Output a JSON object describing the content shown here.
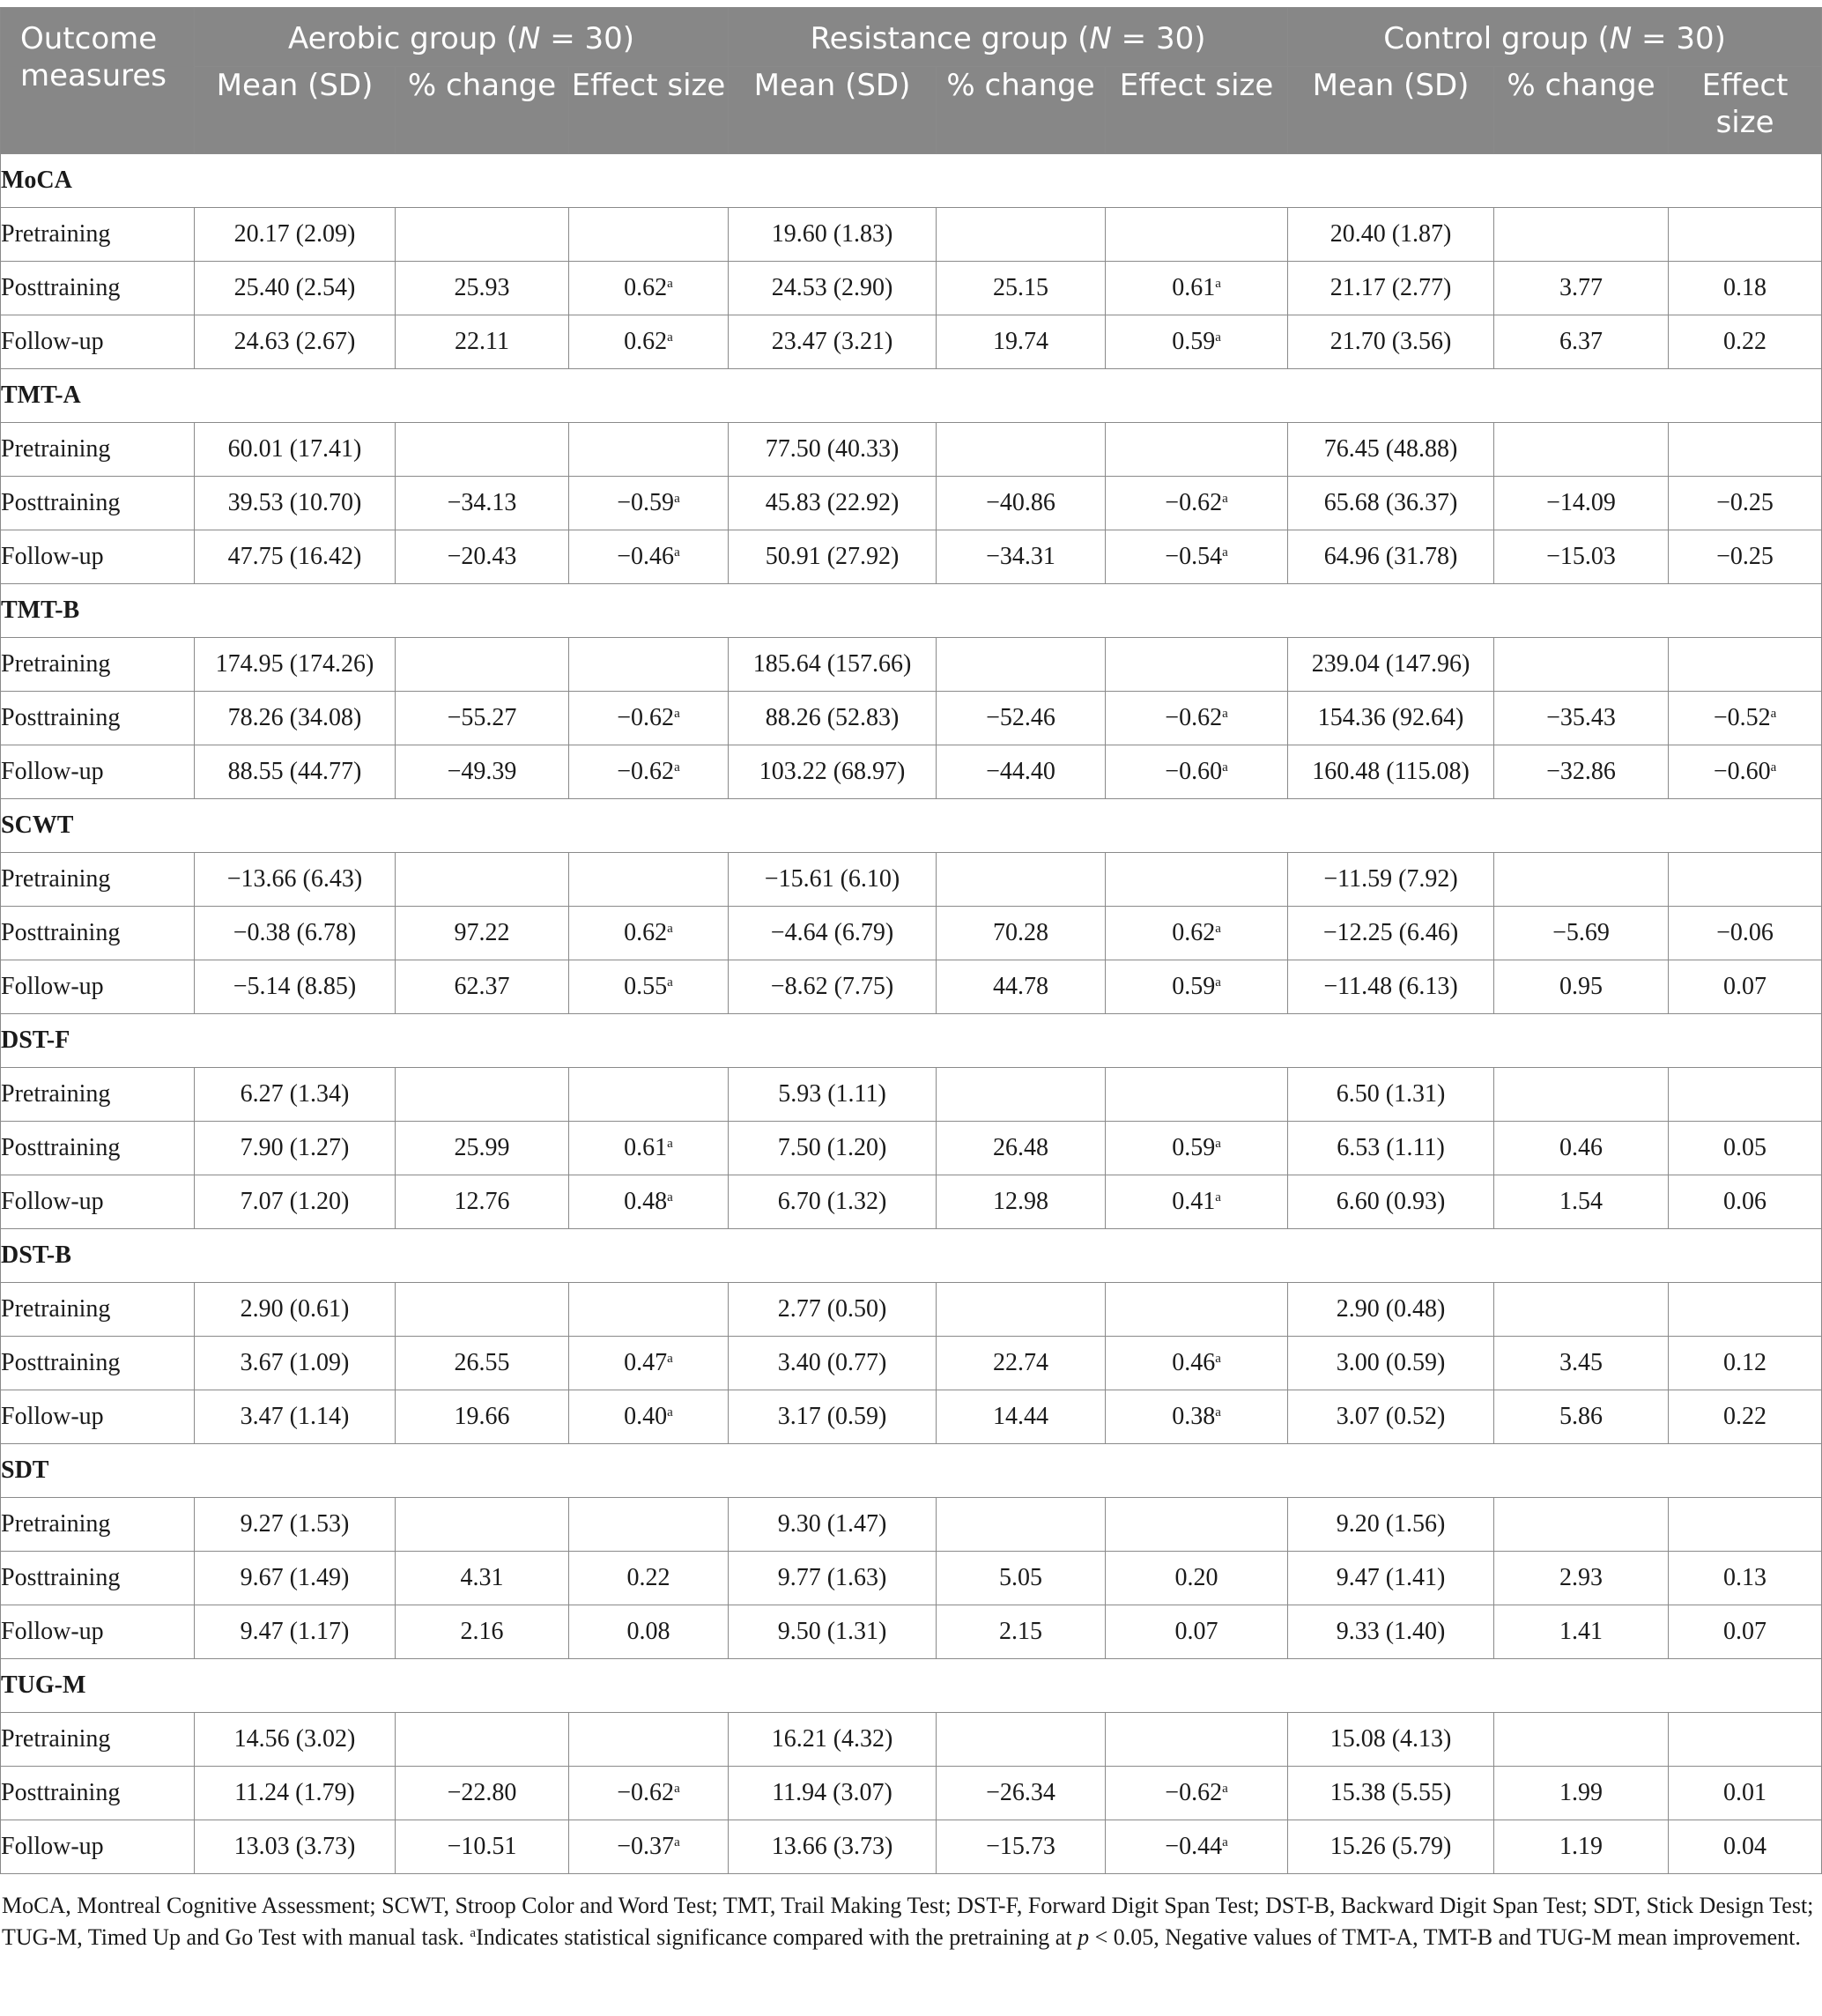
{
  "header": {
    "outcome_label": "Outcome measures",
    "groups": [
      {
        "name": "Aerobic group",
        "n": "N",
        "n_value": " = 30)"
      },
      {
        "name": "Resistance group",
        "n": "N",
        "n_value": " = 30)"
      },
      {
        "name": "Control group",
        "n": "N",
        "n_value": " = 30)"
      }
    ],
    "subcolumns": [
      "Mean (SD)",
      "% change",
      "Effect size"
    ]
  },
  "sections": [
    {
      "title": "MoCA",
      "rows": [
        {
          "label": "Pretraining",
          "cells": [
            [
              "20.17 (2.09)",
              "",
              ""
            ],
            [
              "19.60 (1.83)",
              "",
              ""
            ],
            [
              "20.40 (1.87)",
              "",
              ""
            ]
          ]
        },
        {
          "label": "Posttraining",
          "cells": [
            [
              "25.40 (2.54)",
              "25.93",
              "0.62",
              "a"
            ],
            [
              "24.53 (2.90)",
              "25.15",
              "0.61",
              "a"
            ],
            [
              "21.17 (2.77)",
              "3.77",
              "0.18",
              ""
            ]
          ]
        },
        {
          "label": "Follow-up",
          "cells": [
            [
              "24.63 (2.67)",
              "22.11",
              "0.62",
              "a"
            ],
            [
              "23.47 (3.21)",
              "19.74",
              "0.59",
              "a"
            ],
            [
              "21.70 (3.56)",
              "6.37",
              "0.22",
              ""
            ]
          ]
        }
      ]
    },
    {
      "title": "TMT-A",
      "rows": [
        {
          "label": "Pretraining",
          "cells": [
            [
              "60.01 (17.41)",
              "",
              ""
            ],
            [
              "77.50 (40.33)",
              "",
              ""
            ],
            [
              "76.45 (48.88)",
              "",
              ""
            ]
          ]
        },
        {
          "label": "Posttraining",
          "cells": [
            [
              "39.53 (10.70)",
              "−34.13",
              "−0.59",
              "a"
            ],
            [
              "45.83 (22.92)",
              "−40.86",
              "−0.62",
              "a"
            ],
            [
              "65.68 (36.37)",
              "−14.09",
              "−0.25",
              ""
            ]
          ]
        },
        {
          "label": "Follow-up",
          "cells": [
            [
              "47.75 (16.42)",
              "−20.43",
              "−0.46",
              "a"
            ],
            [
              "50.91 (27.92)",
              "−34.31",
              "−0.54",
              "a"
            ],
            [
              "64.96 (31.78)",
              "−15.03",
              "−0.25",
              ""
            ]
          ]
        }
      ]
    },
    {
      "title": "TMT-B",
      "rows": [
        {
          "label": "Pretraining",
          "cells": [
            [
              "174.95 (174.26)",
              "",
              ""
            ],
            [
              "185.64 (157.66)",
              "",
              ""
            ],
            [
              "239.04 (147.96)",
              "",
              ""
            ]
          ]
        },
        {
          "label": "Posttraining",
          "cells": [
            [
              "78.26 (34.08)",
              "−55.27",
              "−0.62",
              "a"
            ],
            [
              "88.26 (52.83)",
              "−52.46",
              "−0.62",
              "a"
            ],
            [
              "154.36 (92.64)",
              "−35.43",
              "−0.52",
              "a"
            ]
          ]
        },
        {
          "label": "Follow-up",
          "cells": [
            [
              "88.55 (44.77)",
              "−49.39",
              "−0.62",
              "a"
            ],
            [
              "103.22 (68.97)",
              "−44.40",
              "−0.60",
              "a"
            ],
            [
              "160.48 (115.08)",
              "−32.86",
              "−0.60",
              "a"
            ]
          ]
        }
      ]
    },
    {
      "title": "SCWT",
      "rows": [
        {
          "label": "Pretraining",
          "cells": [
            [
              "−13.66 (6.43)",
              "",
              ""
            ],
            [
              "−15.61 (6.10)",
              "",
              ""
            ],
            [
              "−11.59 (7.92)",
              "",
              ""
            ]
          ]
        },
        {
          "label": "Posttraining",
          "cells": [
            [
              "−0.38 (6.78)",
              "97.22",
              "0.62",
              "a"
            ],
            [
              "−4.64 (6.79)",
              "70.28",
              "0.62",
              "a"
            ],
            [
              "−12.25 (6.46)",
              "−5.69",
              "−0.06",
              ""
            ]
          ]
        },
        {
          "label": "Follow-up",
          "cells": [
            [
              "−5.14 (8.85)",
              "62.37",
              "0.55",
              "a"
            ],
            [
              "−8.62 (7.75)",
              "44.78",
              "0.59",
              "a"
            ],
            [
              "−11.48 (6.13)",
              "0.95",
              "0.07",
              ""
            ]
          ]
        }
      ]
    },
    {
      "title": "DST-F",
      "rows": [
        {
          "label": "Pretraining",
          "cells": [
            [
              "6.27 (1.34)",
              "",
              ""
            ],
            [
              "5.93 (1.11)",
              "",
              ""
            ],
            [
              "6.50 (1.31)",
              "",
              ""
            ]
          ]
        },
        {
          "label": "Posttraining",
          "cells": [
            [
              "7.90 (1.27)",
              "25.99",
              "0.61",
              "a"
            ],
            [
              "7.50 (1.20)",
              "26.48",
              "0.59",
              "a"
            ],
            [
              "6.53 (1.11)",
              "0.46",
              "0.05",
              ""
            ]
          ]
        },
        {
          "label": "Follow-up",
          "cells": [
            [
              "7.07 (1.20)",
              "12.76",
              "0.48",
              "a"
            ],
            [
              "6.70 (1.32)",
              "12.98",
              "0.41",
              "a"
            ],
            [
              "6.60 (0.93)",
              "1.54",
              "0.06",
              ""
            ]
          ]
        }
      ]
    },
    {
      "title": "DST-B",
      "rows": [
        {
          "label": "Pretraining",
          "cells": [
            [
              "2.90 (0.61)",
              "",
              ""
            ],
            [
              "2.77 (0.50)",
              "",
              ""
            ],
            [
              "2.90 (0.48)",
              "",
              ""
            ]
          ]
        },
        {
          "label": "Posttraining",
          "cells": [
            [
              "3.67 (1.09)",
              "26.55",
              "0.47",
              "a"
            ],
            [
              "3.40 (0.77)",
              "22.74",
              "0.46",
              "a"
            ],
            [
              "3.00 (0.59)",
              "3.45",
              "0.12",
              ""
            ]
          ]
        },
        {
          "label": "Follow-up",
          "cells": [
            [
              "3.47 (1.14)",
              "19.66",
              "0.40",
              "a"
            ],
            [
              "3.17 (0.59)",
              "14.44",
              "0.38",
              "a"
            ],
            [
              "3.07 (0.52)",
              "5.86",
              "0.22",
              ""
            ]
          ]
        }
      ]
    },
    {
      "title": "SDT",
      "rows": [
        {
          "label": "Pretraining",
          "cells": [
            [
              "9.27 (1.53)",
              "",
              ""
            ],
            [
              "9.30 (1.47)",
              "",
              ""
            ],
            [
              "9.20 (1.56)",
              "",
              ""
            ]
          ]
        },
        {
          "label": "Posttraining",
          "cells": [
            [
              "9.67 (1.49)",
              "4.31",
              "0.22",
              ""
            ],
            [
              "9.77 (1.63)",
              "5.05",
              "0.20",
              ""
            ],
            [
              "9.47 (1.41)",
              "2.93",
              "0.13",
              ""
            ]
          ]
        },
        {
          "label": "Follow-up",
          "cells": [
            [
              "9.47 (1.17)",
              "2.16",
              "0.08",
              ""
            ],
            [
              "9.50 (1.31)",
              "2.15",
              "0.07",
              ""
            ],
            [
              "9.33 (1.40)",
              "1.41",
              "0.07",
              ""
            ]
          ]
        }
      ]
    },
    {
      "title": "TUG-M",
      "rows": [
        {
          "label": "Pretraining",
          "cells": [
            [
              "14.56 (3.02)",
              "",
              ""
            ],
            [
              "16.21 (4.32)",
              "",
              ""
            ],
            [
              "15.08 (4.13)",
              "",
              ""
            ]
          ]
        },
        {
          "label": "Posttraining",
          "cells": [
            [
              "11.24 (1.79)",
              "−22.80",
              "−0.62",
              "a"
            ],
            [
              "11.94 (3.07)",
              "−26.34",
              "−0.62",
              "a"
            ],
            [
              "15.38 (5.55)",
              "1.99",
              "0.01",
              ""
            ]
          ]
        },
        {
          "label": "Follow-up",
          "cells": [
            [
              "13.03 (3.73)",
              "−10.51",
              "−0.37",
              "a"
            ],
            [
              "13.66 (3.73)",
              "−15.73",
              "−0.44",
              "a"
            ],
            [
              "15.26 (5.79)",
              "1.19",
              "0.04",
              ""
            ]
          ]
        }
      ]
    }
  ],
  "footnote": {
    "text1": "MoCA, Montreal Cognitive Assessment; SCWT, Stroop Color and Word Test; TMT, Trail Making Test; DST-F, Forward Digit Span Test; DST-B, Backward Digit Span Test; SDT, Stick Design Test; TUG-M, Timed Up and Go Test with manual task. ",
    "sup": "a",
    "text2": "Indicates statistical significance compared with the pretraining at ",
    "p": "p",
    "text3": " < 0.05, Negative values of TMT-A, TMT-B and TUG-M mean improvement."
  }
}
